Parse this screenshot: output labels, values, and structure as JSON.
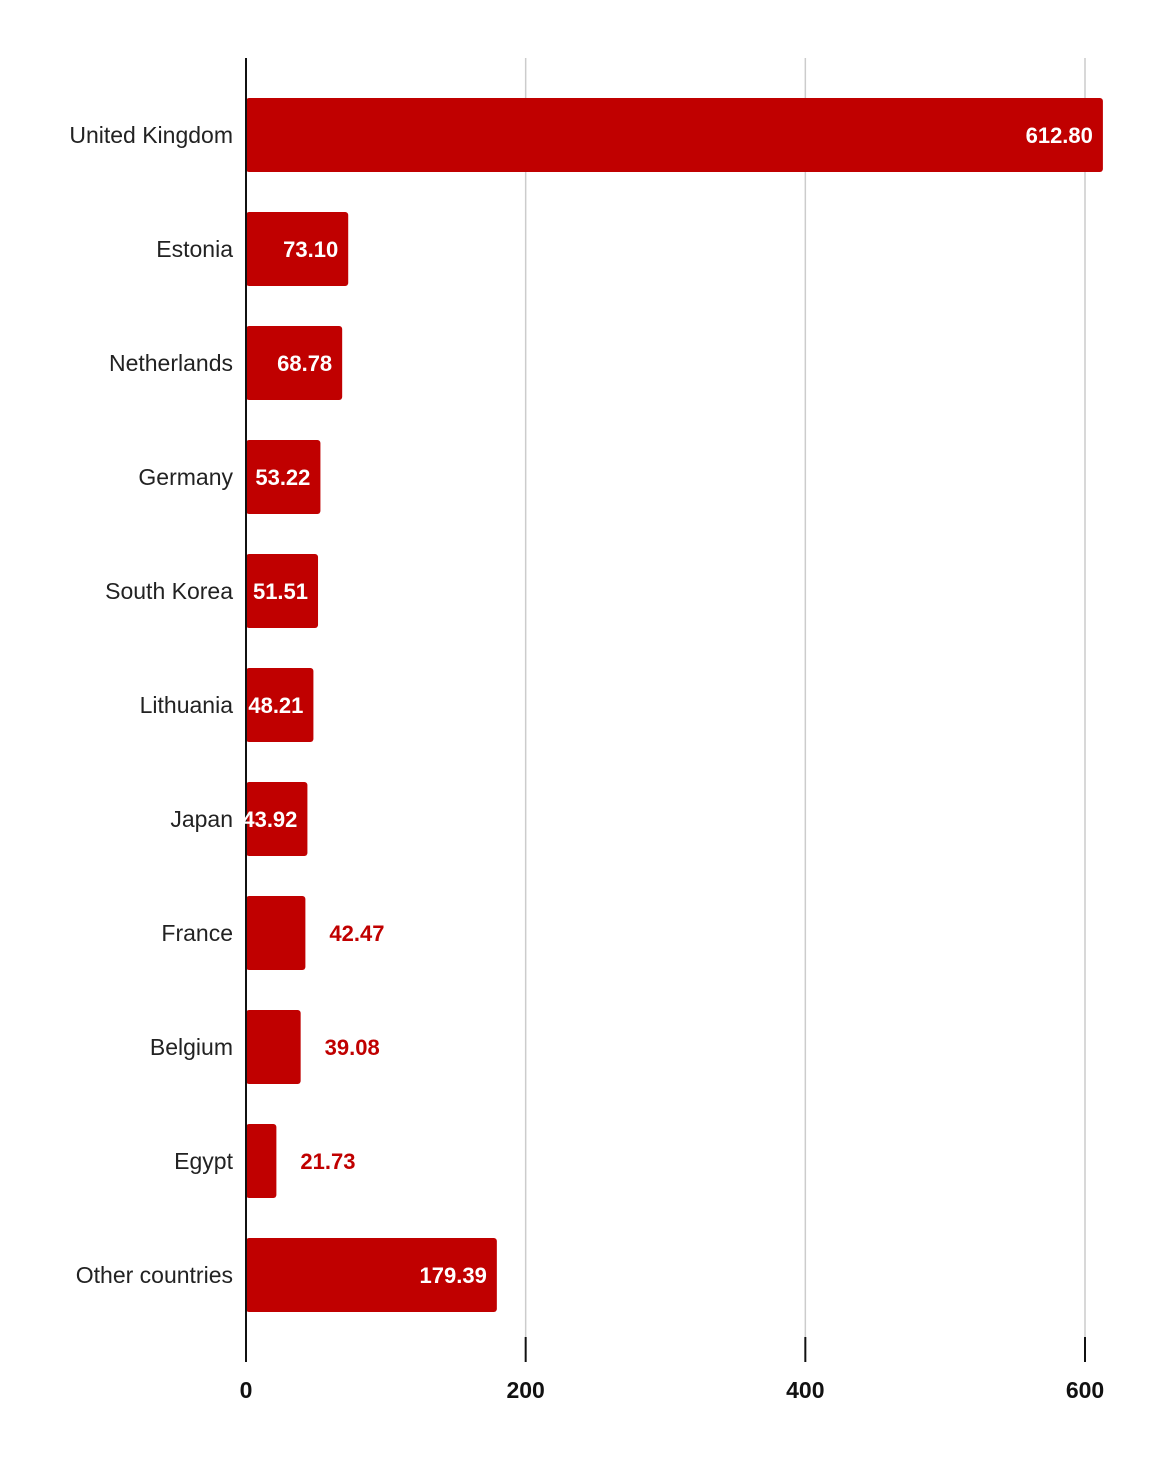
{
  "chart_data": {
    "type": "bar",
    "orientation": "horizontal",
    "categories": [
      "United Kingdom",
      "Estonia",
      "Netherlands",
      "Germany",
      "South Korea",
      "Lithuania",
      "Japan",
      "France",
      "Belgium",
      "Egypt",
      "Other countries"
    ],
    "values": [
      612.8,
      73.1,
      68.78,
      53.22,
      51.51,
      48.21,
      43.92,
      42.47,
      39.08,
      21.73,
      179.39
    ],
    "value_labels": [
      "612.80",
      "73.10",
      "68.78",
      "53.22",
      "51.51",
      "48.21",
      "43.92",
      "42.47",
      "39.08",
      "21.73",
      "179.39"
    ],
    "x_ticks": [
      "0",
      "200",
      "400",
      "600"
    ],
    "xlim": [
      0,
      600
    ],
    "grid": true,
    "bar_color": "#c00000",
    "label_color_inside": "#ffffff",
    "label_color_outside": "#c00000",
    "title": "",
    "xlabel": "",
    "ylabel": ""
  }
}
